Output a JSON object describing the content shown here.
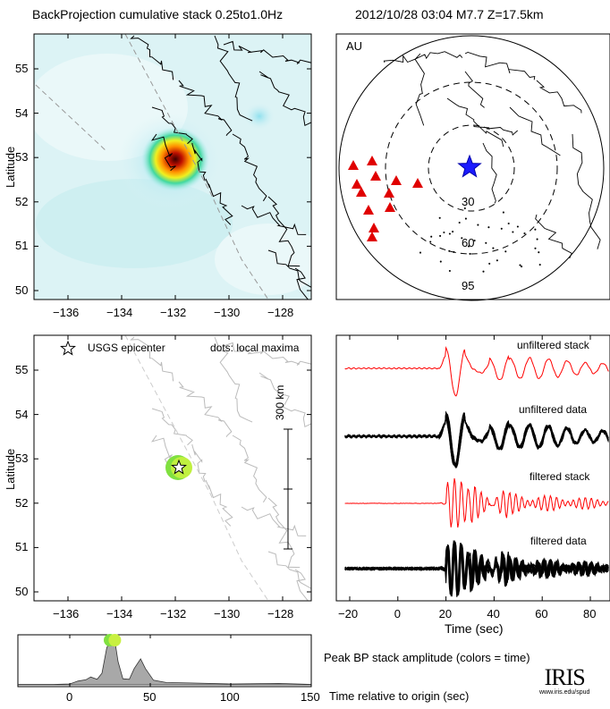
{
  "header": {
    "title": "BackProjection cumulative stack 0.25to1.0Hz",
    "event": "2012/10/28 03:04  M7.7  Z=17.5km"
  },
  "map_top": {
    "ylabel": "Latitude",
    "yticks": [
      "55",
      "54",
      "53",
      "52",
      "51",
      "50"
    ],
    "xticks": [
      "−136",
      "−134",
      "−132",
      "−130",
      "−128"
    ]
  },
  "globe": {
    "array_label": "AU",
    "ring_labels": [
      "30",
      "60",
      "95"
    ],
    "epicenter_color": "#1a1aff",
    "station_color": "#e00000"
  },
  "map_bottom": {
    "ylabel": "Latitude",
    "yticks": [
      "55",
      "54",
      "53",
      "52",
      "51",
      "50"
    ],
    "xticks": [
      "−136",
      "−134",
      "−132",
      "−130",
      "−128"
    ],
    "legend_epicenter": "USGS epicenter",
    "legend_dots": "dots: local maxima",
    "scale_label": "300 km"
  },
  "waveforms": {
    "labels": [
      "unfiltered stack",
      "unfiltered data",
      "filtered stack",
      "filtered data"
    ],
    "xticks": [
      "−20",
      "0",
      "20",
      "40",
      "60",
      "80"
    ],
    "xlabel": "Time (sec)",
    "stack_color": "#ff0000"
  },
  "peak": {
    "title": "Peak BP stack amplitude (colors = time)",
    "xlabel": "Time relative to origin (sec)",
    "xticks": [
      "0",
      "50",
      "100",
      "150"
    ]
  },
  "logo": {
    "name": "IRIS",
    "url": "www.iris.edu/spud"
  },
  "chart_data": [
    {
      "type": "heatmap",
      "title": "BackProjection cumulative stack 0.25to1.0Hz",
      "xlabel": "",
      "ylabel": "Latitude",
      "xlim": [
        -137,
        -127
      ],
      "ylim": [
        49.8,
        55.7
      ],
      "peak": {
        "lon": -132.0,
        "lat": 52.8
      }
    },
    {
      "type": "line",
      "xlabel": "Time (sec)",
      "xlim": [
        -22,
        95
      ],
      "series": [
        {
          "name": "unfiltered stack"
        },
        {
          "name": "unfiltered data"
        },
        {
          "name": "filtered stack"
        },
        {
          "name": "filtered data"
        }
      ]
    },
    {
      "type": "area",
      "title": "Peak BP stack amplitude (colors = time)",
      "xlabel": "Time relative to origin (sec)",
      "xlim": [
        -32,
        150
      ],
      "ylim": [
        0,
        1.05
      ],
      "x": [
        -32,
        -10,
        0,
        5,
        10,
        13,
        17,
        20,
        23,
        26,
        28,
        30,
        33,
        37,
        40,
        44,
        47,
        52,
        60,
        75,
        100,
        130,
        150
      ],
      "y": [
        0.01,
        0.01,
        0.02,
        0.08,
        0.11,
        0.17,
        0.12,
        0.25,
        0.8,
        1.0,
        0.95,
        0.5,
        0.13,
        0.12,
        0.35,
        0.56,
        0.35,
        0.1,
        0.05,
        0.04,
        0.02,
        0.03,
        0.01
      ],
      "peak_marker_time": [
        25,
        28
      ]
    }
  ]
}
